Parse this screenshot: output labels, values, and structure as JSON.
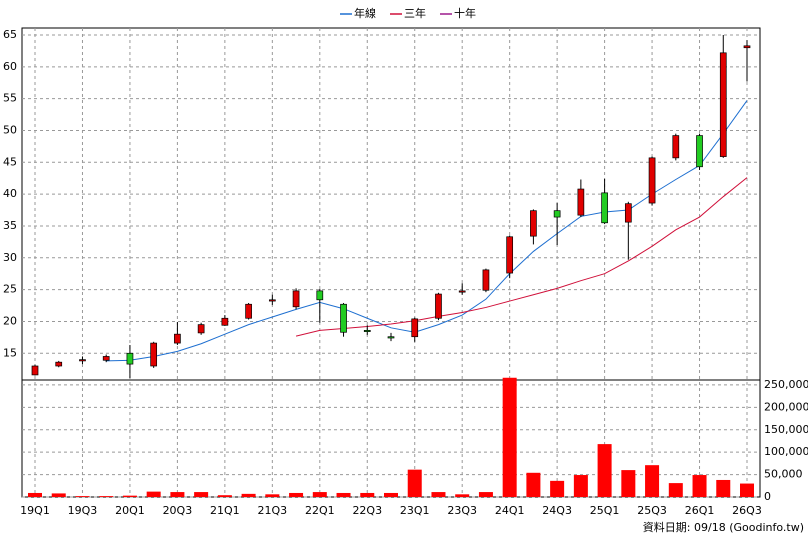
{
  "chart_data": {
    "type": "candlestick",
    "categories": [
      "19Q1",
      null,
      "19Q3",
      null,
      "20Q1",
      null,
      "20Q3",
      null,
      "21Q1",
      null,
      "21Q3",
      null,
      "22Q1",
      null,
      "22Q3",
      null,
      "23Q1",
      null,
      "23Q3",
      null,
      "24Q1",
      null,
      "24Q3",
      null,
      "25Q1",
      null,
      "25Q3",
      null,
      "26Q1",
      null,
      "26Q3"
    ],
    "open": [
      11.6,
      13.0,
      13.8,
      13.9,
      15.0,
      13.0,
      16.6,
      18.2,
      19.4,
      20.5,
      23.2,
      22.3,
      24.8,
      22.7,
      18.6,
      17.6,
      17.6,
      20.5,
      24.6,
      24.9,
      27.6,
      33.4,
      37.4,
      36.7,
      40.2,
      35.6,
      38.6,
      45.7,
      49.2,
      45.9,
      63.0
    ],
    "high": [
      13.2,
      13.8,
      14.5,
      14.8,
      16.3,
      16.8,
      19.9,
      19.8,
      21.0,
      22.9,
      24.2,
      25.2,
      25.1,
      22.9,
      19.4,
      18.2,
      20.6,
      24.5,
      26.0,
      28.3,
      33.5,
      37.6,
      38.6,
      42.3,
      42.4,
      38.8,
      45.9,
      49.5,
      49.5,
      65.0,
      64.2
    ],
    "low": [
      11.5,
      12.8,
      13.3,
      13.6,
      11.1,
      12.7,
      16.3,
      17.9,
      19.3,
      20.3,
      22.6,
      21.9,
      19.8,
      17.6,
      17.9,
      16.9,
      16.8,
      20.2,
      24.2,
      24.6,
      26.8,
      32.1,
      32.0,
      36.4,
      35.3,
      29.7,
      38.2,
      45.3,
      43.8,
      45.7,
      57.7
    ],
    "close": [
      13.0,
      13.6,
      14.0,
      14.5,
      13.3,
      16.6,
      18.0,
      19.5,
      20.5,
      22.7,
      23.4,
      24.8,
      23.4,
      18.3,
      18.4,
      17.4,
      20.4,
      24.3,
      24.8,
      28.1,
      33.3,
      37.4,
      36.4,
      40.8,
      35.5,
      38.5,
      45.7,
      49.2,
      44.3,
      62.2,
      63.3
    ],
    "up_color": "#e00000",
    "down_color": "#22cc22",
    "series": [
      {
        "name": "年線",
        "color": "#1e6fd0",
        "values": [
          null,
          null,
          null,
          13.8,
          13.9,
          14.5,
          15.3,
          16.5,
          18.0,
          19.5,
          20.7,
          21.9,
          23.0,
          22.0,
          20.5,
          19.0,
          18.3,
          19.5,
          21.0,
          23.5,
          27.5,
          31.0,
          33.8,
          36.5,
          37.2,
          37.5,
          40.0,
          42.3,
          44.5,
          49.5,
          54.7
        ]
      },
      {
        "name": "三年",
        "color": "#d0103a",
        "values": [
          null,
          null,
          null,
          null,
          null,
          null,
          null,
          null,
          null,
          null,
          null,
          17.7,
          18.6,
          18.9,
          19.2,
          19.6,
          20.1,
          20.8,
          21.4,
          22.2,
          23.2,
          24.2,
          25.2,
          26.4,
          27.5,
          29.5,
          31.8,
          34.4,
          36.4,
          39.6,
          42.6
        ]
      },
      {
        "name": "十年",
        "color": "#9c1a8c",
        "values": [
          null,
          null,
          null,
          null,
          null,
          null,
          null,
          null,
          null,
          null,
          null,
          null,
          null,
          null,
          null,
          null,
          null,
          null,
          null,
          null,
          null,
          null,
          null,
          null,
          null,
          null,
          null,
          null,
          null,
          null,
          null
        ]
      }
    ],
    "ylim": [
      10.8,
      66.1
    ],
    "yticks": [
      15,
      20,
      25,
      30,
      35,
      40,
      45,
      50,
      55,
      60,
      65
    ],
    "grid": true,
    "legend": "top",
    "volume": {
      "color": "#ff0000",
      "values": [
        9000,
        8000,
        2000,
        2000,
        3000,
        12000,
        11000,
        11000,
        4000,
        7000,
        6000,
        9000,
        11000,
        9000,
        9000,
        9000,
        61000,
        11000,
        6000,
        11000,
        266000,
        54000,
        36000,
        49000,
        118000,
        60000,
        71000,
        31000,
        49000,
        38000,
        30000
      ],
      "ylim": [
        0,
        261000
      ],
      "yticks": [
        0,
        {
          "value": 50000,
          "label": "50,000"
        },
        {
          "value": 100000,
          "label": "100,000"
        },
        {
          "value": 150000,
          "label": "150,000"
        },
        {
          "value": 200000,
          "label": "200,000"
        },
        {
          "value": 250000,
          "label": "250,000"
        }
      ]
    },
    "footnote": "資料日期: 09/18  (Goodinfo.tw)"
  }
}
